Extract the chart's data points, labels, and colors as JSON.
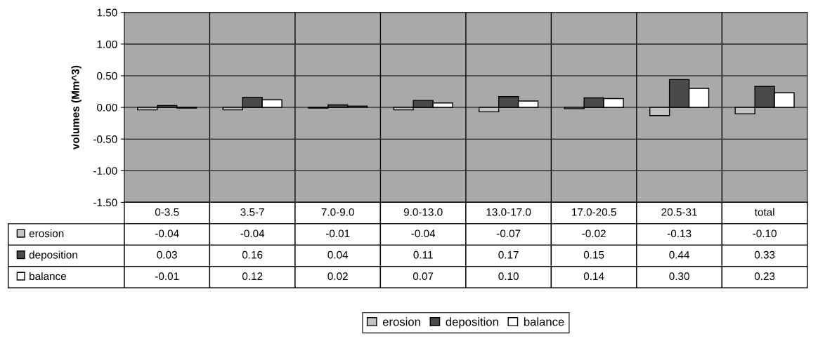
{
  "chart_data": {
    "type": "bar",
    "ylabel": "volumes (Mm^3)",
    "categories": [
      "0-3.5",
      "3.5-7",
      "7.0-9.0",
      "9.0-13.0",
      "13.0-17.0",
      "17.0-20.5",
      "20.5-31",
      "total"
    ],
    "series": [
      {
        "name": "erosion",
        "color": "#c4c4c4",
        "values": [
          -0.04,
          -0.04,
          -0.01,
          -0.04,
          -0.07,
          -0.02,
          -0.13,
          -0.1
        ],
        "value_labels": [
          "-0.04",
          "-0.04",
          "-0.01",
          "-0.04",
          "-0.07",
          "-0.02",
          "-0.13",
          "-0.10"
        ]
      },
      {
        "name": "deposition",
        "color": "#4a4a4a",
        "values": [
          0.03,
          0.16,
          0.04,
          0.11,
          0.17,
          0.15,
          0.44,
          0.33
        ],
        "value_labels": [
          "0.03",
          "0.16",
          "0.04",
          "0.11",
          "0.17",
          "0.15",
          "0.44",
          "0.33"
        ]
      },
      {
        "name": "balance",
        "color": "#ffffff",
        "values": [
          -0.01,
          0.12,
          0.02,
          0.07,
          0.1,
          0.14,
          0.3,
          0.23
        ],
        "value_labels": [
          "-0.01",
          "0.12",
          "0.02",
          "0.07",
          "0.10",
          "0.14",
          "0.30",
          "0.23"
        ]
      }
    ],
    "ylim": [
      -1.5,
      1.5
    ],
    "yticks": [
      {
        "value": -1.5,
        "label": "-1.50"
      },
      {
        "value": -1.0,
        "label": "-1.00"
      },
      {
        "value": -0.5,
        "label": "-0.50"
      },
      {
        "value": 0,
        "label": "0.00"
      },
      {
        "value": 0.5,
        "label": "0.50"
      },
      {
        "value": 1.0,
        "label": "1.00"
      },
      {
        "value": 1.5,
        "label": "1.50"
      }
    ],
    "grid": "y",
    "legend": "bottom"
  }
}
